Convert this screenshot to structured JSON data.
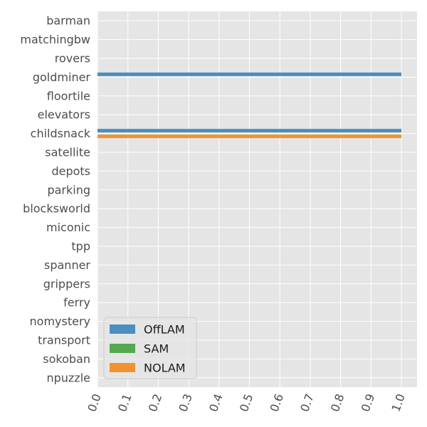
{
  "chart_data": {
    "type": "bar",
    "orientation": "horizontal",
    "categories": [
      "barman",
      "matchingbw",
      "rovers",
      "goldminer",
      "floortile",
      "elevators",
      "childsnack",
      "satellite",
      "depots",
      "parking",
      "blocksworld",
      "miconic",
      "tpp",
      "spanner",
      "grippers",
      "ferry",
      "nomystery",
      "transport",
      "sokoban",
      "npuzzle"
    ],
    "series": [
      {
        "name": "OffLAM",
        "color": "#4a8fc0",
        "values": [
          0,
          0,
          0,
          1.0,
          0,
          0,
          1.0,
          0,
          0,
          0,
          0,
          0,
          0,
          0,
          0,
          0,
          0,
          0,
          0,
          0
        ]
      },
      {
        "name": "SAM",
        "color": "#55a84f",
        "values": [
          0,
          0,
          0,
          0,
          0,
          0,
          0,
          0,
          0,
          0,
          0,
          0,
          0,
          0,
          0,
          0,
          0,
          0,
          0,
          0
        ]
      },
      {
        "name": "NOLAM",
        "color": "#f2922f",
        "values": [
          0,
          0,
          0,
          0,
          0,
          0,
          1.0,
          0,
          0,
          0,
          0,
          0,
          0,
          0,
          0,
          0,
          0,
          0,
          0,
          0
        ]
      }
    ],
    "xticks": [
      "0.0",
      "0.1",
      "0.2",
      "0.3",
      "0.4",
      "0.5",
      "0.6",
      "0.7",
      "0.8",
      "0.9",
      "1.0"
    ],
    "xlim": [
      0,
      1.0
    ],
    "title": "",
    "xlabel": "",
    "ylabel": "",
    "grid": true,
    "legend_position": "lower-left",
    "background_color": "#e5e5e5",
    "grid_color": "#ffffff"
  }
}
